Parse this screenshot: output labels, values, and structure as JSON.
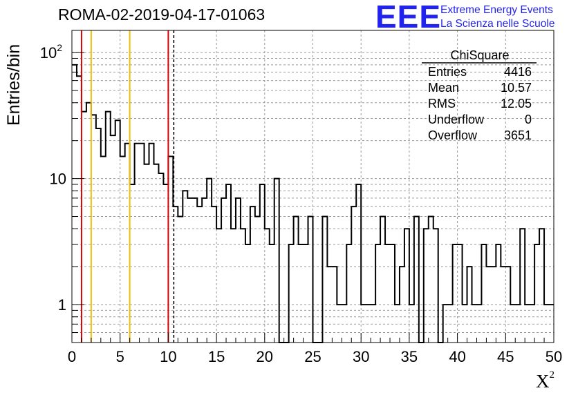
{
  "header": {
    "title": "ROMA-02-2019-04-17-01063"
  },
  "logo": {
    "mark": "EEE",
    "line1": "Extreme Energy Events",
    "line2": "La Scienza nelle Scuole"
  },
  "colors": {
    "histogram": "#000000",
    "grid": "#999999",
    "red_line": "#dd0000",
    "yellow_line": "#f0c000",
    "logo_blue": "#2323ee"
  },
  "stats": {
    "title": "ChiSquare",
    "rows": [
      {
        "label": "Entries",
        "value": "4416"
      },
      {
        "label": "Mean",
        "value": "10.57"
      },
      {
        "label": "RMS",
        "value": "12.05"
      },
      {
        "label": "Underflow",
        "value": "0"
      },
      {
        "label": "Overflow",
        "value": "3651"
      }
    ]
  },
  "chart_data": {
    "type": "histogram",
    "title": "ROMA-02-2019-04-17-01063",
    "xlabel": "X",
    "xlabel_sup": "2",
    "ylabel": "Entries/bin",
    "xlim": [
      0,
      50
    ],
    "ylim": [
      0.5,
      150
    ],
    "yscale": "log",
    "grid": true,
    "bin_width": 0.5,
    "x_ticks": [
      "0",
      "5",
      "10",
      "15",
      "20",
      "25",
      "30",
      "35",
      "40",
      "45",
      "50"
    ],
    "y_ticks": [
      {
        "value": 1,
        "label": "1"
      },
      {
        "value": 10,
        "label": "10"
      },
      {
        "value": 100,
        "label": "10",
        "sup": "2"
      }
    ],
    "counts": [
      80,
      65,
      34,
      40,
      32,
      25,
      15,
      34,
      22,
      29,
      15,
      19,
      9,
      19,
      19,
      13,
      19,
      13,
      11,
      9,
      15,
      6,
      5,
      8,
      7,
      7,
      6,
      7,
      10,
      6,
      4,
      7,
      9,
      4,
      7,
      4,
      3,
      6,
      5,
      9,
      4,
      3,
      10,
      0,
      0,
      3,
      5,
      3,
      3,
      5,
      0,
      0,
      5,
      2,
      2,
      1,
      1,
      3,
      6,
      9,
      1,
      1,
      1,
      3,
      5,
      3,
      3,
      1,
      2,
      4,
      1,
      5,
      0,
      4,
      5,
      4,
      0,
      1,
      1,
      3,
      3,
      1,
      2,
      1,
      1,
      3,
      2,
      2,
      3,
      2,
      2,
      1,
      1,
      4,
      1,
      1,
      3,
      4,
      1,
      1
    ],
    "vertical_lines": [
      {
        "x": 1,
        "color": "red"
      },
      {
        "x": 2,
        "color": "yellow"
      },
      {
        "x": 6,
        "color": "yellow"
      },
      {
        "x": 10,
        "color": "red"
      },
      {
        "x": 10.57,
        "color": "black",
        "style": "dashed"
      }
    ],
    "stats_box": "top-right"
  }
}
